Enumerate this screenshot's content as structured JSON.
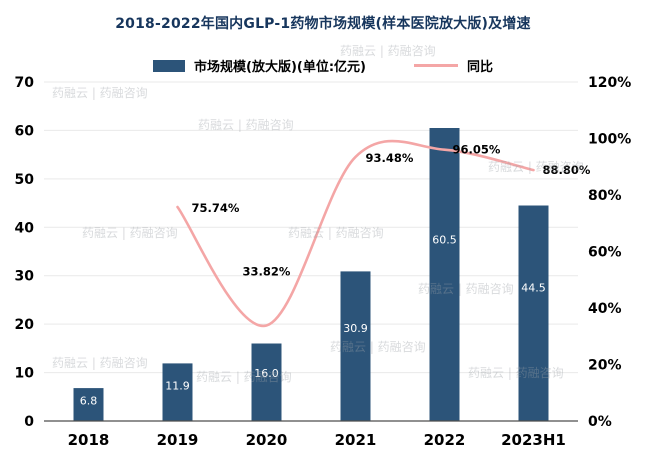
{
  "title": "2018-2022年国内GLP-1药物市场规模(样本医院放大版)及增速",
  "legend": {
    "bar_label": "市场规模(放大版)(单位:亿元)",
    "line_label": "同比"
  },
  "watermark_text": "药融云 | 药融咨询",
  "colors": {
    "bar": "#2c5479",
    "line": "#f4a6a6",
    "title": "#17365d",
    "grid": "#e9e9e9",
    "axis_line": "#4d4d4d",
    "tick_text": "#000000",
    "bar_label": "#ffffff",
    "line_label": "#000000"
  },
  "chart_data": {
    "type": "bar+line",
    "title": "2018-2022年国内GLP-1药物市场规模(样本医院放大版)及增速",
    "categories": [
      "2018",
      "2019",
      "2020",
      "2021",
      "2022",
      "2023H1"
    ],
    "series": [
      {
        "name": "市场规模(放大版)(单位:亿元)",
        "type": "bar",
        "axis": "left",
        "values": [
          6.8,
          11.9,
          16.0,
          30.9,
          60.5,
          44.5
        ]
      },
      {
        "name": "同比",
        "type": "line",
        "axis": "right",
        "unit": "%",
        "values": [
          null,
          75.74,
          33.82,
          93.48,
          96.05,
          88.8
        ]
      }
    ],
    "bar_labels": [
      "6.8",
      "11.9",
      "16.0",
      "30.9",
      "60.5",
      "44.5"
    ],
    "line_labels": [
      "75.74%",
      "33.82%",
      "93.48%",
      "96.05%",
      "88.80%"
    ],
    "left_axis": {
      "min": 0,
      "max": 70,
      "step": 10,
      "ticks": [
        "0",
        "10",
        "20",
        "30",
        "40",
        "50",
        "60",
        "70"
      ]
    },
    "right_axis": {
      "min": 0,
      "max": 120,
      "step": 20,
      "ticks": [
        "0%",
        "20%",
        "40%",
        "60%",
        "80%",
        "100%",
        "120%"
      ]
    },
    "legend_position": "top",
    "grid": "horizontal"
  }
}
